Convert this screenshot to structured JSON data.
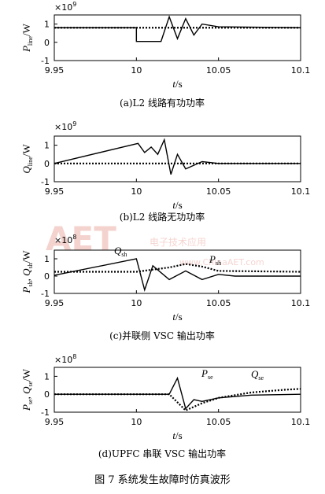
{
  "watermark": {
    "logo": "AET",
    "brand": "电子技术应用",
    "url": "www.ChinaAET.com"
  },
  "figure_caption": "图 7   系统发生故障时仿真波形",
  "xaxis": {
    "label": "t",
    "unit": "/s",
    "ticks": [
      "9.95",
      "10",
      "10.05",
      "10.1"
    ]
  },
  "exp_label": "×10",
  "chart_data": [
    {
      "type": "line",
      "caption": "(a)L2 线路有功功率",
      "ylabel_main": "P",
      "ylabel_sub": "line",
      "ylabel_unit": "/W",
      "exponent": "9",
      "xlim": [
        9.95,
        10.1
      ],
      "ylim": [
        -1,
        1.5
      ],
      "yticks": [
        "1",
        "0",
        "-1"
      ],
      "series": [
        {
          "style": "dotted",
          "x": [
            9.95,
            10.1
          ],
          "y": [
            0.8,
            0.8
          ]
        },
        {
          "style": "solid",
          "x": [
            9.95,
            10.0,
            10.0,
            10.015,
            10.02,
            10.025,
            10.03,
            10.035,
            10.04,
            10.05,
            10.1
          ],
          "y": [
            0.8,
            0.8,
            0.05,
            0.05,
            1.4,
            0.2,
            1.3,
            0.4,
            1.0,
            0.85,
            0.8
          ]
        }
      ]
    },
    {
      "type": "line",
      "caption": "(b)L2 线路无功功率",
      "ylabel_main": "Q",
      "ylabel_sub": "line",
      "ylabel_unit": "/W",
      "exponent": "9",
      "xlim": [
        9.95,
        10.1
      ],
      "ylim": [
        -1,
        1.5
      ],
      "yticks": [
        "1",
        "0",
        "-1"
      ],
      "series": [
        {
          "style": "dotted",
          "x": [
            9.95,
            10.1
          ],
          "y": [
            0,
            0
          ]
        },
        {
          "style": "solid",
          "x": [
            9.95,
            10.001,
            10.005,
            10.009,
            10.013,
            10.017,
            10.021,
            10.025,
            10.03,
            10.04,
            10.05,
            10.1
          ],
          "y": [
            0,
            1.1,
            0.6,
            0.9,
            0.5,
            1.3,
            -0.6,
            0.5,
            -0.3,
            0.1,
            0,
            0
          ]
        }
      ]
    },
    {
      "type": "line",
      "caption": "(c)并联侧 VSC 输出功率",
      "ylabel_main": "P",
      "ylabel_sub": "sh",
      "ylabel_main2": "Q",
      "ylabel_sub2": "sh",
      "ylabel_unit": "/W",
      "exponent": "8",
      "xlim": [
        9.95,
        10.1
      ],
      "ylim": [
        -1,
        1.5
      ],
      "yticks": [
        "1",
        "0",
        "-1"
      ],
      "annotations": [
        {
          "main": "Q",
          "sub": "sh"
        },
        {
          "main": "P",
          "sub": "sh"
        }
      ],
      "series": [
        {
          "name": "Q_sh",
          "style": "dotted",
          "x": [
            9.95,
            10.0,
            10.02,
            10.03,
            10.04,
            10.05,
            10.1
          ],
          "y": [
            0.25,
            0.25,
            0.5,
            0.7,
            0.55,
            0.3,
            0.25
          ]
        },
        {
          "name": "P_sh",
          "style": "solid",
          "x": [
            9.95,
            10.0,
            10.005,
            10.01,
            10.02,
            10.03,
            10.04,
            10.05,
            10.06,
            10.1
          ],
          "y": [
            0.05,
            1.0,
            -0.8,
            0.6,
            -0.2,
            0.3,
            -0.2,
            0.1,
            0,
            0
          ]
        }
      ]
    },
    {
      "type": "line",
      "caption": "(d)UPFC 串联 VSC 输出功率",
      "ylabel_main": "P",
      "ylabel_sub": "se",
      "ylabel_main2": "Q",
      "ylabel_sub2": "se",
      "ylabel_unit": "/W",
      "exponent": "8",
      "xlim": [
        9.95,
        10.1
      ],
      "ylim": [
        -1,
        1.5
      ],
      "yticks": [
        "1",
        "0",
        "-1"
      ],
      "annotations": [
        {
          "main": "P",
          "sub": "se"
        },
        {
          "main": "Q",
          "sub": "se"
        }
      ],
      "series": [
        {
          "name": "P_se",
          "style": "solid",
          "x": [
            9.95,
            10.02,
            10.025,
            10.03,
            10.035,
            10.04,
            10.05,
            10.07,
            10.1
          ],
          "y": [
            0,
            0,
            0.9,
            -0.8,
            -0.3,
            -0.4,
            -0.2,
            -0.05,
            0
          ]
        },
        {
          "name": "Q_se",
          "style": "dotted",
          "x": [
            9.95,
            10.02,
            10.03,
            10.04,
            10.05,
            10.07,
            10.09,
            10.1
          ],
          "y": [
            0,
            0,
            -0.9,
            -0.5,
            -0.2,
            0.1,
            0.25,
            0.3
          ]
        }
      ]
    }
  ]
}
